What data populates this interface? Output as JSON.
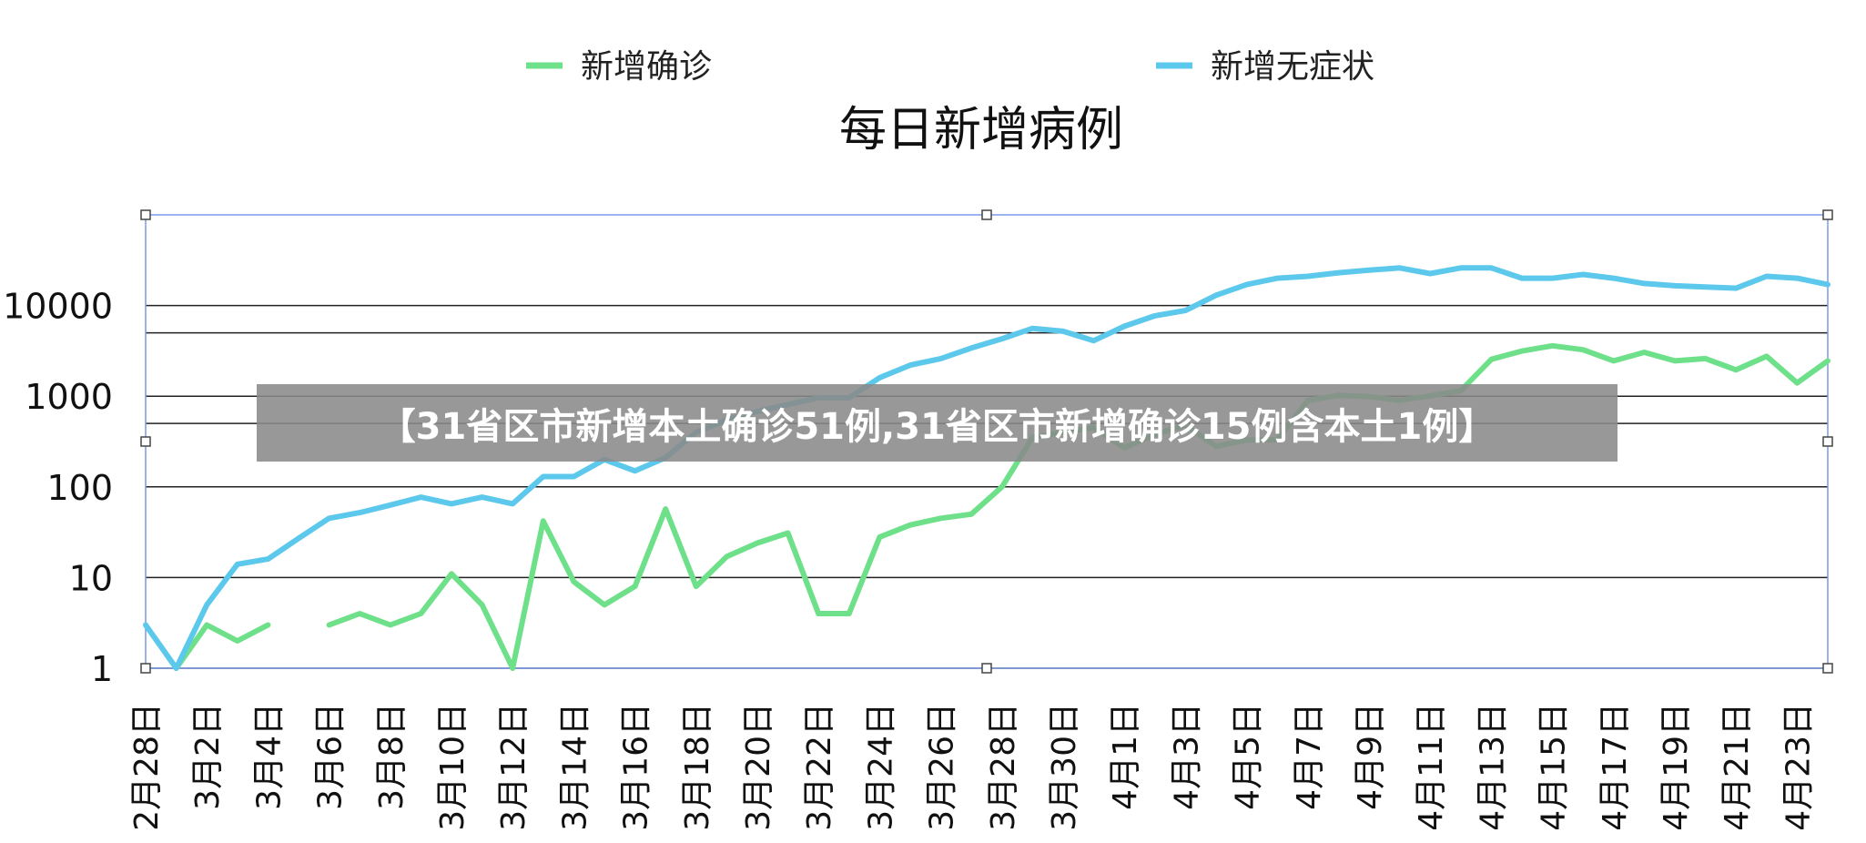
{
  "legend": [
    {
      "label": "新增确诊",
      "color": "#6EE08A"
    },
    {
      "label": "新增无症状",
      "color": "#5BC8EC"
    }
  ],
  "chart_title": "每日新增病例",
  "banner_text": "【31省区市新增本土确诊51例,31省区市新增确诊15例含本土1例】",
  "chart_data": {
    "type": "line",
    "title": "每日新增病例",
    "yscale": "log",
    "ylim": [
      1,
      100000
    ],
    "y_ticks": [
      "1",
      "10",
      "100",
      "1000",
      "10000"
    ],
    "grid": true,
    "legend_position": "top",
    "x": [
      "2月28日",
      "3月1日",
      "3月2日",
      "3月3日",
      "3月4日",
      "3月5日",
      "3月6日",
      "3月7日",
      "3月8日",
      "3月9日",
      "3月10日",
      "3月11日",
      "3月12日",
      "3月13日",
      "3月14日",
      "3月15日",
      "3月16日",
      "3月17日",
      "3月18日",
      "3月19日",
      "3月20日",
      "3月21日",
      "3月22日",
      "3月23日",
      "3月24日",
      "3月25日",
      "3月26日",
      "3月27日",
      "3月28日",
      "3月29日",
      "3月30日",
      "3月31日",
      "4月1日",
      "4月2日",
      "4月3日",
      "4月4日",
      "4月5日",
      "4月6日",
      "4月7日",
      "4月8日",
      "4月9日",
      "4月10日",
      "4月11日",
      "4月12日",
      "4月13日",
      "4月14日",
      "4月15日",
      "4月16日",
      "4月17日",
      "4月18日",
      "4月19日",
      "4月20日",
      "4月21日",
      "4月22日",
      "4月23日",
      "4月24日"
    ],
    "x_tick_labels": [
      "2月28日",
      "3月2日",
      "3月4日",
      "3月6日",
      "3月8日",
      "3月10日",
      "3月12日",
      "3月14日",
      "3月16日",
      "3月18日",
      "3月20日",
      "3月22日",
      "3月24日",
      "3月26日",
      "3月28日",
      "3月30日",
      "4月1日",
      "4月3日",
      "4月5日",
      "4月7日",
      "4月9日",
      "4月11日",
      "4月13日",
      "4月15日",
      "4月17日",
      "4月19日",
      "4月21日",
      "4月23日"
    ],
    "series": [
      {
        "name": "新增确诊",
        "color": "#6EE08A",
        "values": [
          null,
          1,
          3,
          2,
          3,
          null,
          3,
          4,
          3,
          4,
          11,
          5,
          1,
          42,
          9,
          5,
          8,
          57,
          8,
          17,
          24,
          31,
          4,
          4,
          28,
          38,
          45,
          50,
          100,
          350,
          400,
          450,
          270,
          380,
          480,
          280,
          330,
          330,
          900,
          1020,
          990,
          900,
          1010,
          1150,
          2550,
          3150,
          3600,
          3250,
          2450,
          3050,
          2450,
          2600,
          1950,
          2750,
          1400,
          2450
        ]
      },
      {
        "name": "新增无症状",
        "color": "#5BC8EC",
        "values": [
          3,
          1,
          5,
          14,
          16,
          27,
          45,
          52,
          63,
          77,
          65,
          77,
          65,
          130,
          130,
          200,
          150,
          210,
          400,
          550,
          680,
          810,
          960,
          960,
          1600,
          2200,
          2600,
          3400,
          4300,
          5600,
          5200,
          4100,
          5900,
          7700,
          8800,
          13000,
          17000,
          20000,
          21000,
          23000,
          24500,
          26000,
          22500,
          26000,
          26000,
          20000,
          20000,
          22000,
          20000,
          17500,
          16500,
          16000,
          15500,
          21000,
          20000,
          17000
        ]
      }
    ]
  }
}
